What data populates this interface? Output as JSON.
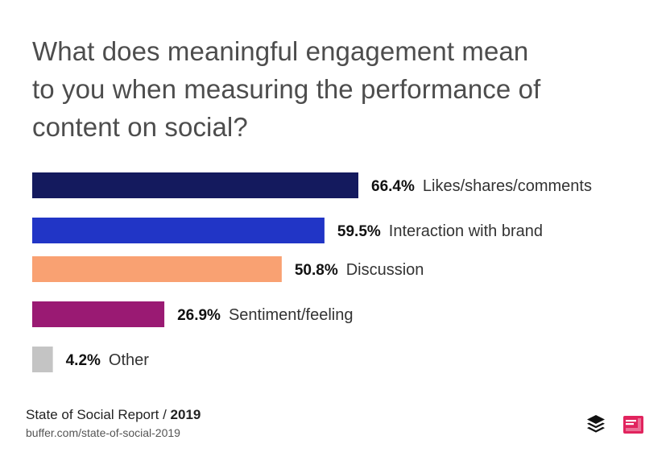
{
  "header": {
    "title_lines": [
      "What does meaningful engagement mean",
      "to you when measuring the performance of",
      "content on social?"
    ]
  },
  "chart_data": {
    "type": "bar",
    "orientation": "horizontal",
    "categories": [
      "Likes/shares/comments",
      "Interaction with brand",
      "Discussion",
      "Sentiment/feeling",
      "Other"
    ],
    "values": [
      66.4,
      59.5,
      50.8,
      26.9,
      4.2
    ],
    "value_labels": [
      "66.4%",
      "59.5%",
      "50.8%",
      "26.9%",
      "4.2%"
    ],
    "colors": [
      "#141a5e",
      "#2135c6",
      "#f9a172",
      "#9a1a73",
      "#c4c4c4"
    ],
    "unit": "%",
    "xlim": [
      0,
      100
    ],
    "grid": false,
    "legend": "none"
  },
  "footer": {
    "source_prefix": "State of Social Report / ",
    "source_year": "2019",
    "url": "buffer.com/state-of-social-2019"
  },
  "logos": {
    "left": "buffer-stack-icon",
    "right": "publisher-badge-icon"
  }
}
